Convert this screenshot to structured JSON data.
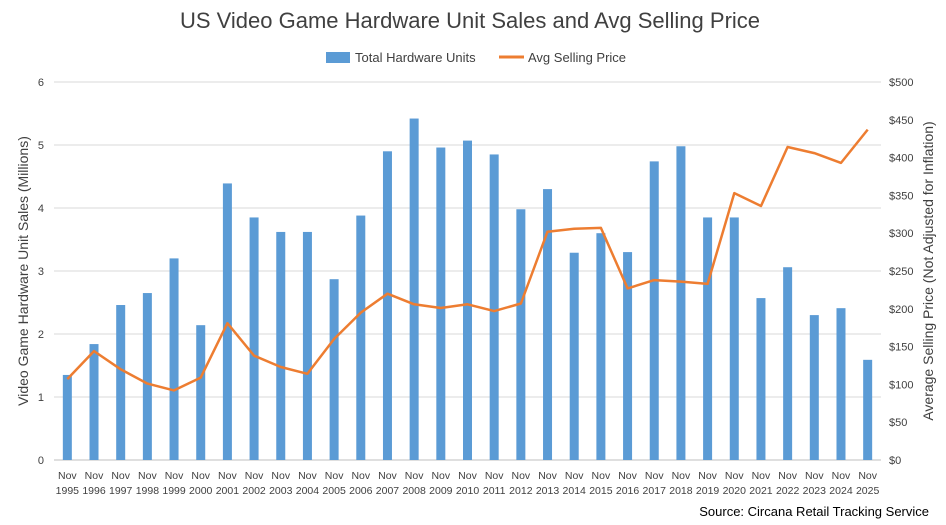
{
  "chart_data": {
    "type": "bar",
    "title": "US Video Game Hardware Unit Sales and Avg Selling Price",
    "source": "Source: Circana Retail Tracking Service",
    "categories": [
      [
        "Nov",
        "1995"
      ],
      [
        "Nov",
        "1996"
      ],
      [
        "Nov",
        "1997"
      ],
      [
        "Nov",
        "1998"
      ],
      [
        "Nov",
        "1999"
      ],
      [
        "Nov",
        "2000"
      ],
      [
        "Nov",
        "2001"
      ],
      [
        "Nov",
        "2002"
      ],
      [
        "Nov",
        "2003"
      ],
      [
        "Nov",
        "2004"
      ],
      [
        "Nov",
        "2005"
      ],
      [
        "Nov",
        "2006"
      ],
      [
        "Nov",
        "2007"
      ],
      [
        "Nov",
        "2008"
      ],
      [
        "Nov",
        "2009"
      ],
      [
        "Nov",
        "2010"
      ],
      [
        "Nov",
        "2011"
      ],
      [
        "Nov",
        "2012"
      ],
      [
        "Nov",
        "2013"
      ],
      [
        "Nov",
        "2014"
      ],
      [
        "Nov",
        "2015"
      ],
      [
        "Nov",
        "2016"
      ],
      [
        "Nov",
        "2017"
      ],
      [
        "Nov",
        "2018"
      ],
      [
        "Nov",
        "2019"
      ],
      [
        "Nov",
        "2020"
      ],
      [
        "Nov",
        "2021"
      ],
      [
        "Nov",
        "2022"
      ],
      [
        "Nov",
        "2023"
      ],
      [
        "Nov",
        "2024"
      ],
      [
        "Nov",
        "2025"
      ]
    ],
    "ylabel": "Video Game Hardware Unit Sales (Millions)",
    "y2label": "Average Selling Price (Not Adjusted for Inflation)",
    "ylim": [
      0,
      6
    ],
    "yticks": [
      "0",
      "1",
      "2",
      "3",
      "4",
      "5",
      "6"
    ],
    "y2lim": [
      0,
      500
    ],
    "y2ticks": [
      "$0",
      "$50",
      "$100",
      "$150",
      "$200",
      "$250",
      "$300",
      "$350",
      "$400",
      "$450",
      "$500"
    ],
    "legend_position": "top",
    "grid": true,
    "series": [
      {
        "name": "Total Hardware Units",
        "type": "bar",
        "axis": "left",
        "color": "#5b9bd5",
        "values": [
          1.35,
          1.84,
          2.46,
          2.65,
          3.2,
          2.14,
          4.39,
          3.85,
          3.62,
          3.62,
          2.87,
          3.88,
          4.9,
          5.42,
          4.96,
          5.07,
          4.85,
          3.98,
          4.3,
          3.29,
          3.6,
          3.3,
          4.74,
          4.98,
          3.85,
          3.85,
          2.57,
          3.06,
          2.3,
          2.41,
          1.59
        ]
      },
      {
        "name": "Avg Selling Price",
        "type": "line",
        "axis": "right",
        "color": "#ed7d31",
        "values": [
          107,
          144,
          120,
          101,
          92,
          109,
          181,
          138,
          123,
          114,
          160,
          195,
          220,
          206,
          201,
          206,
          197,
          207,
          302,
          306,
          307,
          227,
          238,
          236,
          233,
          353,
          336,
          414,
          406,
          393,
          437
        ]
      }
    ]
  }
}
